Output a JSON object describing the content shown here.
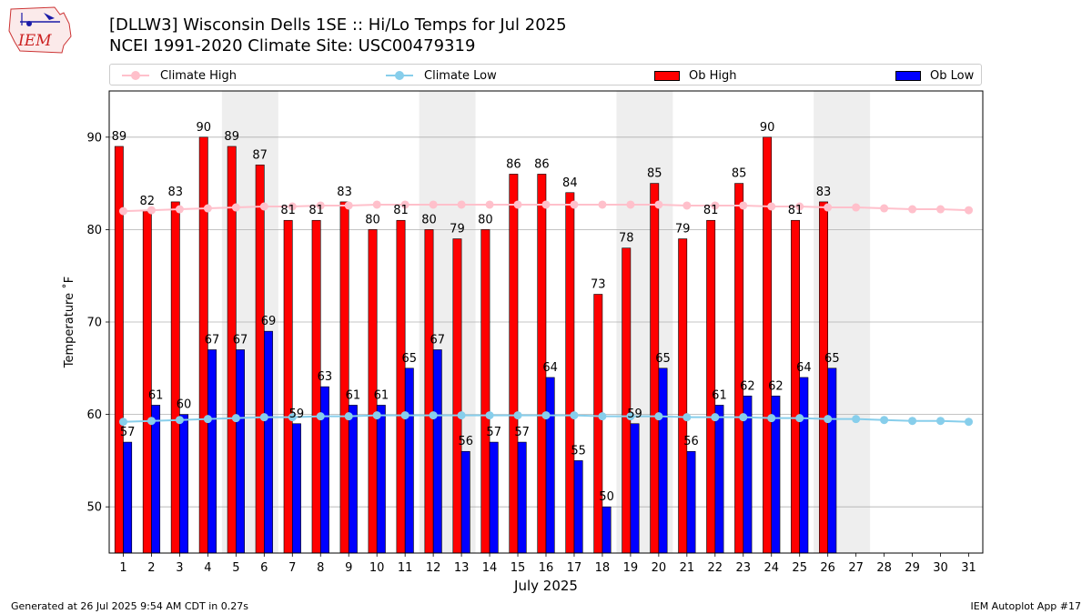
{
  "header": {
    "title_line1": "[DLLW3] Wisconsin Dells 1SE :: Hi/Lo Temps for Jul 2025",
    "title_line2": "NCEI 1991-2020 Climate Site: USC00479319",
    "logo_text": "IEM"
  },
  "footer": {
    "generated": "Generated at 26 Jul 2025 9:54 AM CDT in 0.27s",
    "app": "IEM Autoplot App #17"
  },
  "colors": {
    "climate_high": "#ffc0cb",
    "climate_low": "#87ceeb",
    "ob_high": "#ff0000",
    "ob_low": "#0000ff",
    "weekend_shade": "#eeeeee",
    "grid": "#b0b0b0"
  },
  "chart_data": {
    "type": "bar",
    "xlabel": "July 2025",
    "ylabel": "Temperature ˚F",
    "ylim": [
      45,
      95
    ],
    "yticks": [
      50,
      60,
      70,
      80,
      90
    ],
    "grid": "horizontal",
    "legend_placement": "top",
    "categories": [
      "1",
      "2",
      "3",
      "4",
      "5",
      "6",
      "7",
      "8",
      "9",
      "10",
      "11",
      "12",
      "13",
      "14",
      "15",
      "16",
      "17",
      "18",
      "19",
      "20",
      "21",
      "22",
      "23",
      "24",
      "25",
      "26",
      "27",
      "28",
      "29",
      "30",
      "31"
    ],
    "shaded_days": [
      [
        5,
        6
      ],
      [
        12,
        13
      ],
      [
        19,
        20
      ],
      [
        26,
        27
      ]
    ],
    "series": [
      {
        "name": "Climate High",
        "kind": "line",
        "values": [
          82.0,
          82.1,
          82.2,
          82.3,
          82.4,
          82.5,
          82.5,
          82.6,
          82.6,
          82.7,
          82.7,
          82.7,
          82.7,
          82.7,
          82.7,
          82.7,
          82.7,
          82.7,
          82.7,
          82.7,
          82.6,
          82.6,
          82.6,
          82.5,
          82.5,
          82.4,
          82.4,
          82.3,
          82.2,
          82.2,
          82.1
        ]
      },
      {
        "name": "Climate Low",
        "kind": "line",
        "values": [
          59.2,
          59.3,
          59.4,
          59.5,
          59.6,
          59.7,
          59.7,
          59.8,
          59.8,
          59.9,
          59.9,
          59.9,
          59.9,
          59.9,
          59.9,
          59.9,
          59.9,
          59.8,
          59.8,
          59.8,
          59.7,
          59.7,
          59.7,
          59.6,
          59.6,
          59.5,
          59.5,
          59.4,
          59.3,
          59.3,
          59.2
        ]
      },
      {
        "name": "Ob High",
        "kind": "bar",
        "values": [
          89,
          82,
          83,
          90,
          89,
          87,
          81,
          81,
          83,
          80,
          81,
          80,
          79,
          80,
          86,
          86,
          84,
          73,
          78,
          85,
          79,
          81,
          85,
          90,
          81,
          83,
          null,
          null,
          null,
          null,
          null
        ]
      },
      {
        "name": "Ob Low",
        "kind": "bar",
        "values": [
          57,
          61,
          60,
          67,
          67,
          69,
          59,
          63,
          61,
          61,
          65,
          67,
          56,
          57,
          57,
          64,
          55,
          50,
          59,
          65,
          56,
          61,
          62,
          62,
          64,
          65,
          null,
          null,
          null,
          null,
          null
        ]
      }
    ]
  }
}
